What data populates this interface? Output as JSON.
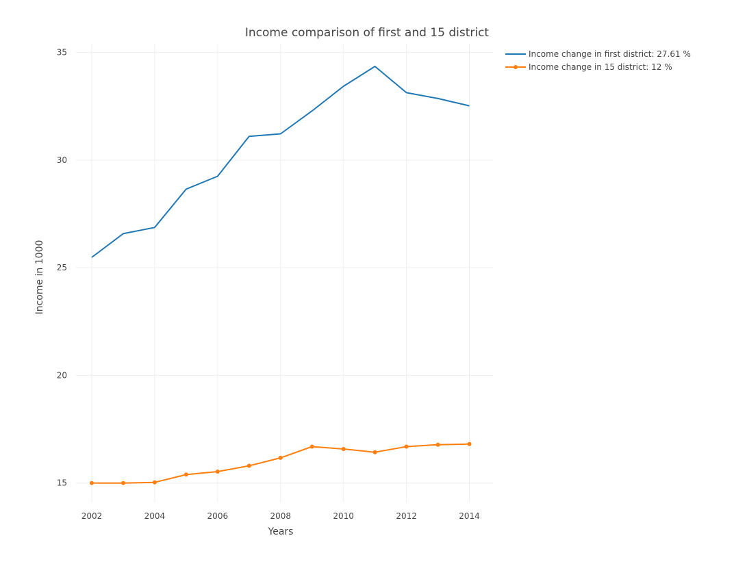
{
  "chart_data": {
    "type": "line",
    "title": "Income comparison of first and 15 district",
    "xlabel": "Years",
    "ylabel": "Income in 1000",
    "xlim": [
      2001.5,
      2014.75
    ],
    "ylim": [
      14.1,
      35.4
    ],
    "x_ticks": [
      "2002",
      "2004",
      "2006",
      "2008",
      "2010",
      "2012",
      "2014"
    ],
    "y_ticks": [
      "15",
      "20",
      "25",
      "30",
      "35"
    ],
    "grid": true,
    "legend_position": "top-right",
    "x": [
      2002,
      2003,
      2004,
      2005,
      2006,
      2007,
      2008,
      2009,
      2010,
      2011,
      2012,
      2013,
      2014
    ],
    "series": [
      {
        "name": "Income change in first district: 27.61 %",
        "color": "#1f77b4",
        "markers": false,
        "values": [
          25.48,
          26.58,
          26.87,
          28.65,
          29.25,
          31.1,
          31.22,
          32.28,
          33.43,
          34.35,
          33.13,
          32.86,
          32.52
        ]
      },
      {
        "name": "Income change in 15 district: 12 %",
        "color": "#ff7f0e",
        "markers": true,
        "values": [
          15.0,
          15.0,
          15.03,
          15.39,
          15.53,
          15.8,
          16.17,
          16.69,
          16.58,
          16.43,
          16.69,
          16.78,
          16.81
        ]
      }
    ]
  }
}
